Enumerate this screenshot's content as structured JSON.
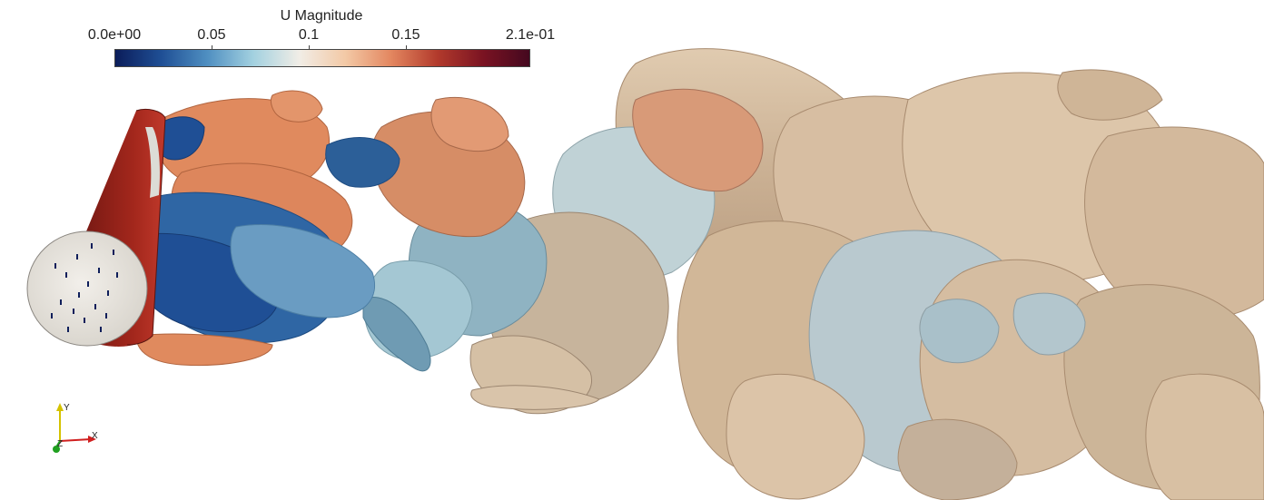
{
  "legend": {
    "title": "U Magnitude",
    "ticks": [
      "0.0e+00",
      "0.05",
      "0.1",
      "0.15",
      "2.1e-01"
    ],
    "colormap": [
      "#0b1d5a",
      "#1f4f95",
      "#4f8fc1",
      "#a3d1e0",
      "#f1ede6",
      "#f3c9a6",
      "#e3865f",
      "#b23a2c",
      "#7a1322",
      "#44081f"
    ]
  },
  "axes": {
    "x": "X",
    "y": "Y",
    "z": "Z"
  },
  "colors": {
    "background": "#ffffff",
    "cylinder_cap": "#eae7e1",
    "cylinder_side": "#96221a",
    "wake_low": "#1f4f95",
    "wake_mid": "#a7cad6",
    "wake_high": "#e48a62",
    "wake_tan": "#d8c0a2"
  }
}
